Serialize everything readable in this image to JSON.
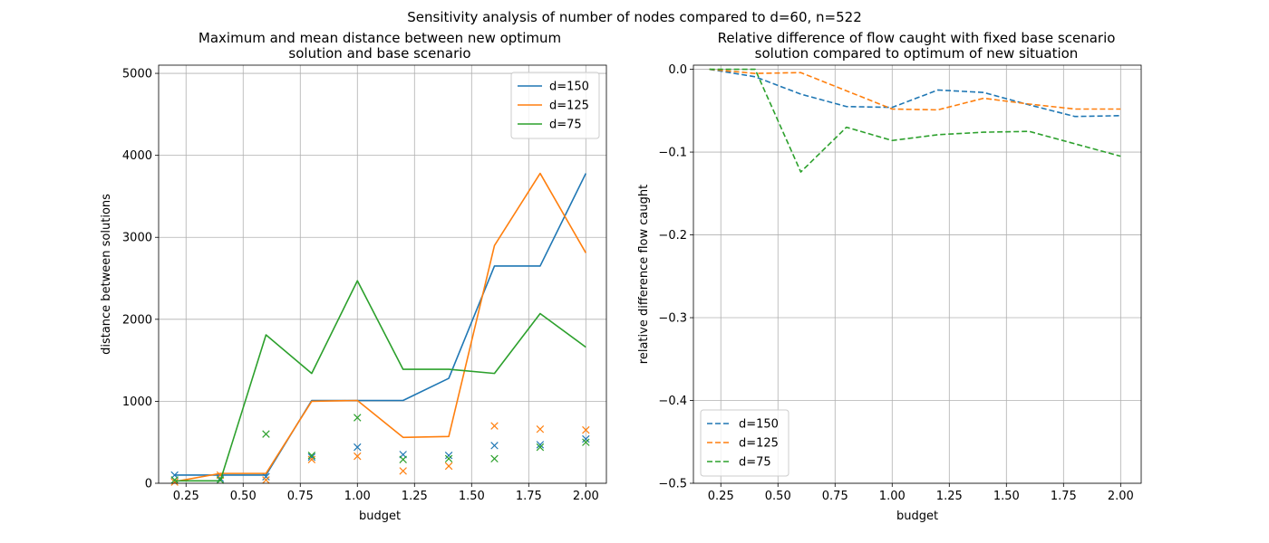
{
  "figure": {
    "suptitle": "Sensitivity analysis of number of nodes compared to d=60, n=522"
  },
  "colors": {
    "d150": "#1f77b4",
    "d125": "#ff7f0e",
    "d75": "#2ca02c"
  },
  "chart_data": [
    {
      "type": "line",
      "title_line1": "Maximum and mean distance between new optimum",
      "title_line2": "solution and base scenario",
      "xlabel": "budget",
      "ylabel": "distance between solutions",
      "xlim": [
        0.13,
        2.09
      ],
      "ylim": [
        0,
        5100
      ],
      "xticks": [
        0.25,
        0.5,
        0.75,
        1.0,
        1.25,
        1.5,
        1.75,
        2.0
      ],
      "xtick_labels": [
        "0.25",
        "0.50",
        "0.75",
        "1.00",
        "1.25",
        "1.50",
        "1.75",
        "2.00"
      ],
      "yticks": [
        0,
        1000,
        2000,
        3000,
        4000,
        5000
      ],
      "ytick_labels": [
        "0",
        "1000",
        "2000",
        "3000",
        "4000",
        "5000"
      ],
      "grid": true,
      "legend_position": "upper-right",
      "x": [
        0.2,
        0.4,
        0.6,
        0.8,
        1.0,
        1.2,
        1.4,
        1.6,
        1.8,
        2.0
      ],
      "series": [
        {
          "name": "d=150",
          "color_key": "d150",
          "max": [
            100,
            100,
            100,
            1010,
            1010,
            1010,
            1280,
            2650,
            2650,
            3780
          ],
          "mean": [
            100,
            60,
            80,
            320,
            440,
            350,
            340,
            460,
            470,
            540
          ]
        },
        {
          "name": "d=125",
          "color_key": "d125",
          "max": [
            20,
            120,
            120,
            1000,
            1010,
            560,
            570,
            2900,
            3780,
            2810
          ],
          "mean": [
            15,
            100,
            40,
            290,
            330,
            150,
            210,
            700,
            660,
            650
          ]
        },
        {
          "name": "d=75",
          "color_key": "d75",
          "max": [
            30,
            30,
            1810,
            1340,
            2470,
            1390,
            1390,
            1340,
            2070,
            1660
          ],
          "mean": [
            40,
            40,
            600,
            340,
            800,
            290,
            300,
            300,
            440,
            500
          ]
        }
      ]
    },
    {
      "type": "line",
      "title_line1": "Relative difference of flow caught with fixed base scenario",
      "title_line2": "solution compared to optimum of new situation",
      "xlabel": "budget",
      "ylabel": "relative difference flow caught",
      "xlim": [
        0.13,
        2.09
      ],
      "ylim": [
        -0.5,
        0.005
      ],
      "xticks": [
        0.25,
        0.5,
        0.75,
        1.0,
        1.25,
        1.5,
        1.75,
        2.0
      ],
      "xtick_labels": [
        "0.25",
        "0.50",
        "0.75",
        "1.00",
        "1.25",
        "1.50",
        "1.75",
        "2.00"
      ],
      "yticks": [
        0.0,
        -0.1,
        -0.2,
        -0.3,
        -0.4,
        -0.5
      ],
      "ytick_labels": [
        "0.0",
        "−0.1",
        "−0.2",
        "−0.3",
        "−0.4",
        "−0.5"
      ],
      "grid": true,
      "legend_position": "lower-left",
      "line_style": "dashed",
      "x": [
        0.2,
        0.4,
        0.6,
        0.8,
        1.0,
        1.2,
        1.4,
        1.6,
        1.8,
        2.0
      ],
      "series": [
        {
          "name": "d=150",
          "color_key": "d150",
          "values": [
            0.0,
            -0.009,
            -0.03,
            -0.045,
            -0.046,
            -0.025,
            -0.028,
            -0.043,
            -0.057,
            -0.056
          ]
        },
        {
          "name": "d=125",
          "color_key": "d125",
          "values": [
            0.0,
            -0.005,
            -0.004,
            -0.026,
            -0.048,
            -0.049,
            -0.035,
            -0.042,
            -0.048,
            -0.048
          ]
        },
        {
          "name": "d=75",
          "color_key": "d75",
          "values": [
            0.0,
            0.0,
            -0.124,
            -0.07,
            -0.086,
            -0.079,
            -0.076,
            -0.075,
            -0.09,
            -0.105
          ]
        }
      ]
    }
  ]
}
